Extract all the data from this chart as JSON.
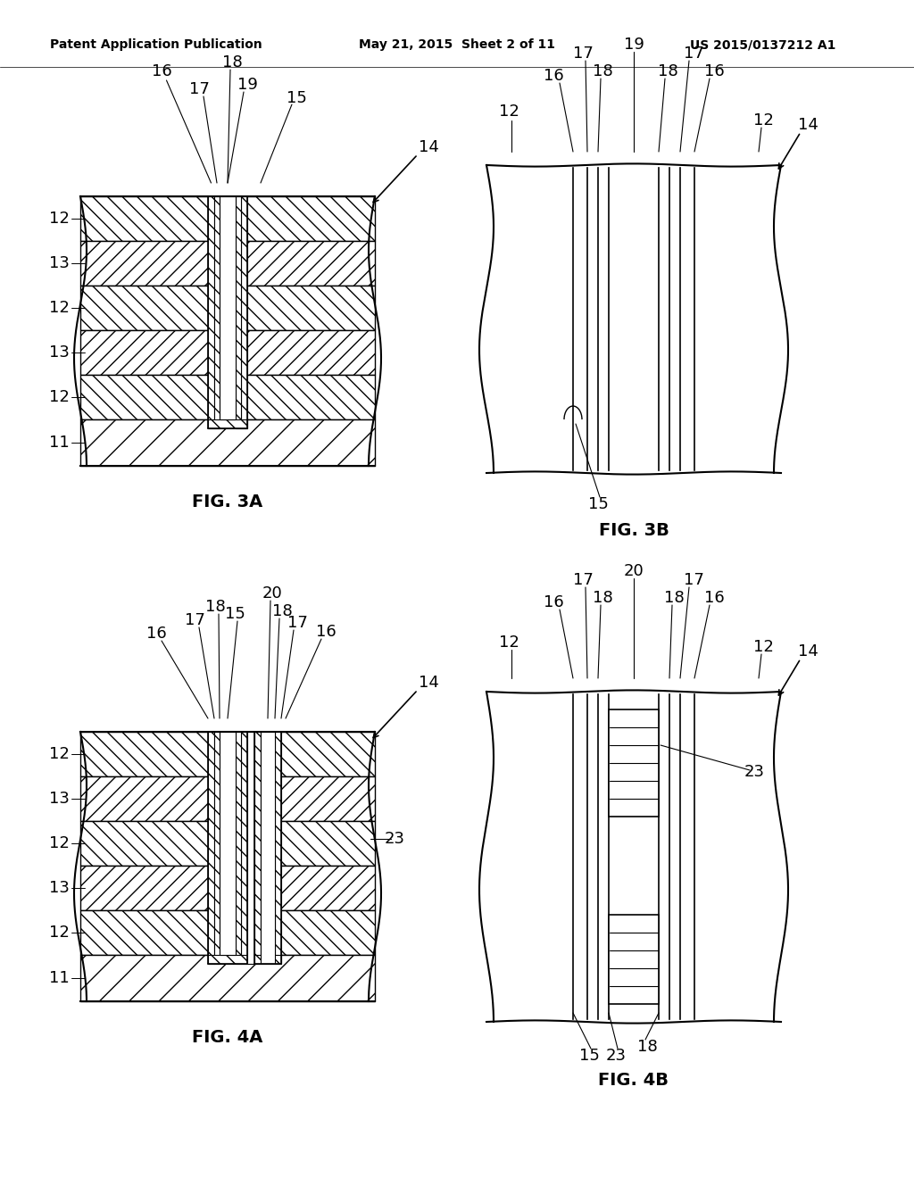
{
  "header_left": "Patent Application Publication",
  "header_mid": "May 21, 2015  Sheet 2 of 11",
  "header_right": "US 2015/0137212 A1",
  "background_color": "#ffffff",
  "font_size_header": 10,
  "font_size_label": 14,
  "font_size_ref": 13
}
